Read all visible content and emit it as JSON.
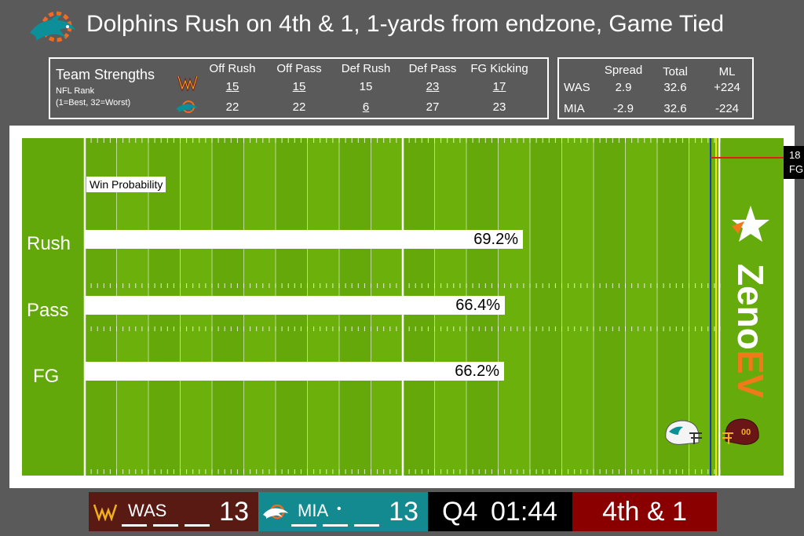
{
  "header": {
    "title": "Dolphins Rush on 4th & 1, 1-yards from endzone, Game Tied"
  },
  "team_strengths": {
    "title": "Team Strengths",
    "subtitle1": "NFL Rank",
    "subtitle2": "(1=Best, 32=Worst)",
    "columns": [
      "Off Rush",
      "Off Pass",
      "Def Rush",
      "Def Pass",
      "FG Kicking"
    ],
    "was": [
      "15",
      "15",
      "15",
      "23",
      "17"
    ],
    "mia": [
      "22",
      "22",
      "6",
      "27",
      "23"
    ]
  },
  "odds": {
    "columns": [
      "Spread",
      "Total",
      "ML"
    ],
    "rows": [
      {
        "team": "WAS",
        "values": [
          "2.9",
          "32.6",
          "+224"
        ]
      },
      {
        "team": "MIA",
        "values": [
          "-2.9",
          "32.6",
          "-224"
        ]
      }
    ]
  },
  "field": {
    "wp_label": "Win Probability",
    "fg_marker_line1": "18",
    "fg_marker_line2": "FG",
    "brand_text": "ZenoEV"
  },
  "chart_data": {
    "type": "bar",
    "title": "Win Probability",
    "categories": [
      "Rush",
      "Pass",
      "FG"
    ],
    "values": [
      69.2,
      66.4,
      66.2
    ],
    "value_labels": [
      "69.2%",
      "66.4%",
      "66.2%"
    ],
    "xlim": [
      0,
      100
    ],
    "orientation": "horizontal"
  },
  "scoreboard": {
    "was_abbr": "WAS",
    "was_score": "13",
    "mia_abbr": "MIA",
    "mia_possession": "•",
    "mia_score": "13",
    "quarter": "Q4",
    "clock": "01:44",
    "down": "4th & 1"
  },
  "colors": {
    "field_green": "#6cb00c",
    "was_maroon": "#5a1a14",
    "mia_teal": "#138a8f",
    "down_red": "#8a0000",
    "zeno_orange": "#f07a1a"
  }
}
